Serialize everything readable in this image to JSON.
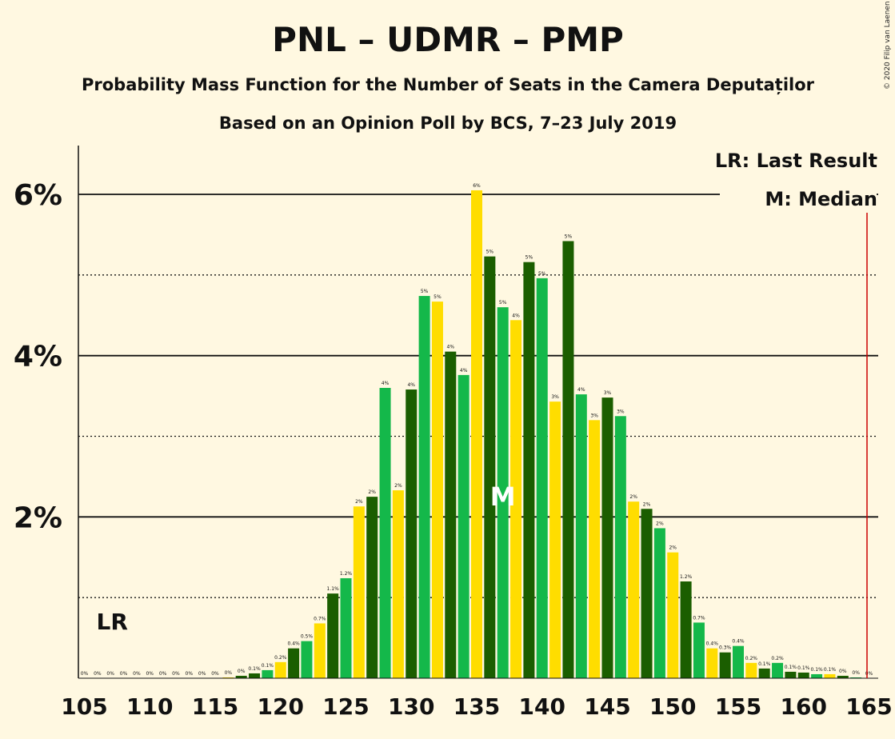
{
  "title": "PNL – UDMR – PMP",
  "subtitle1": "Probability Mass Function for the Number of Seats in the Camera Deputaților",
  "subtitle2": "Based on an Opinion Poll by BCS, 7–23 July 2019",
  "copyright": "© 2020 Filip van Laenen",
  "legend": {
    "lr": "LR: Last Result",
    "median": "M: Median"
  },
  "markers": {
    "lr_label": "LR",
    "lr_seat": 107,
    "median_label": "M",
    "median_seat": 137,
    "majority_seat": 165
  },
  "colors": {
    "dark_green": "#1b5e00",
    "green": "#14b84a",
    "yellow": "#ffdd00",
    "background": "#fff8e1",
    "majority_line": "#cc0000"
  },
  "chart_data": {
    "type": "bar",
    "xlabel": "",
    "ylabel": "",
    "ylim": [
      0,
      6.6
    ],
    "yticks": [
      {
        "value": 2,
        "label": "2%"
      },
      {
        "value": 4,
        "label": "4%"
      },
      {
        "value": 6,
        "label": "6%"
      }
    ],
    "xticks": [
      "105",
      "110",
      "115",
      "120",
      "125",
      "130",
      "135",
      "140",
      "145",
      "150",
      "155",
      "160",
      "165"
    ],
    "seats": [
      105,
      106,
      107,
      108,
      109,
      110,
      111,
      112,
      113,
      114,
      115,
      116,
      117,
      118,
      119,
      120,
      121,
      122,
      123,
      124,
      125,
      126,
      127,
      128,
      129,
      130,
      131,
      132,
      133,
      134,
      135,
      136,
      137,
      138,
      139,
      140,
      141,
      142,
      143,
      144,
      145,
      146,
      147,
      148,
      149,
      150,
      151,
      152,
      153,
      154,
      155,
      156,
      157,
      158,
      159,
      160,
      161,
      162,
      163,
      164,
      165
    ],
    "values": [
      0,
      0,
      0,
      0,
      0,
      0,
      0,
      0,
      0,
      0,
      0,
      0.01,
      0.03,
      0.06,
      0.1,
      0.2,
      0.37,
      0.46,
      0.68,
      1.05,
      1.24,
      2.13,
      2.25,
      3.6,
      2.33,
      3.58,
      4.74,
      4.67,
      4.05,
      3.76,
      6.05,
      5.23,
      4.6,
      4.44,
      5.16,
      4.96,
      3.43,
      5.42,
      3.52,
      3.2,
      3.48,
      3.25,
      2.19,
      2.1,
      1.86,
      1.56,
      1.2,
      0.69,
      0.37,
      0.32,
      0.4,
      0.19,
      0.12,
      0.19,
      0.08,
      0.07,
      0.05,
      0.05,
      0.03,
      0.01,
      0
    ],
    "labels": [
      "0%",
      "0%",
      "0%",
      "0%",
      "0%",
      "0%",
      "0%",
      "0%",
      "0%",
      "0%",
      "0%",
      "0%",
      "0%",
      "0.1%",
      "0.1%",
      "0.2%",
      "0.4%",
      "0.5%",
      "0.7%",
      "1.1%",
      "1.2%",
      "2%",
      "2%",
      "4%",
      "2%",
      "4%",
      "5%",
      "5%",
      "4%",
      "4%",
      "6%",
      "5%",
      "5%",
      "4%",
      "5%",
      "5%",
      "3%",
      "5%",
      "4%",
      "3%",
      "3%",
      "3%",
      "2%",
      "2%",
      "2%",
      "2%",
      "1.2%",
      "0.7%",
      "0.4%",
      "0.3%",
      "0.4%",
      "0.2%",
      "0.1%",
      "0.2%",
      "0.1%",
      "0.1%",
      "0.1%",
      "0.1%",
      "0%",
      "0%",
      "0%"
    ],
    "colors": [
      "dark_green",
      "green",
      "yellow",
      "dark_green",
      "green",
      "yellow",
      "dark_green",
      "green",
      "yellow",
      "dark_green",
      "green",
      "yellow",
      "dark_green",
      "dark_green",
      "green",
      "yellow",
      "dark_green",
      "green",
      "yellow",
      "dark_green",
      "green",
      "yellow",
      "dark_green",
      "green",
      "yellow",
      "dark_green",
      "green",
      "yellow",
      "dark_green",
      "green",
      "yellow",
      "dark_green",
      "green",
      "yellow",
      "dark_green",
      "green",
      "yellow",
      "dark_green",
      "green",
      "yellow",
      "dark_green",
      "green",
      "yellow",
      "dark_green",
      "green",
      "yellow",
      "dark_green",
      "green",
      "yellow",
      "dark_green",
      "green",
      "yellow",
      "dark_green",
      "green",
      "dark_green",
      "dark_green",
      "green",
      "yellow",
      "dark_green",
      "green",
      "yellow"
    ],
    "gridlines": {
      "solid": [
        2,
        4,
        6
      ],
      "dotted": [
        1,
        3,
        5
      ]
    }
  }
}
